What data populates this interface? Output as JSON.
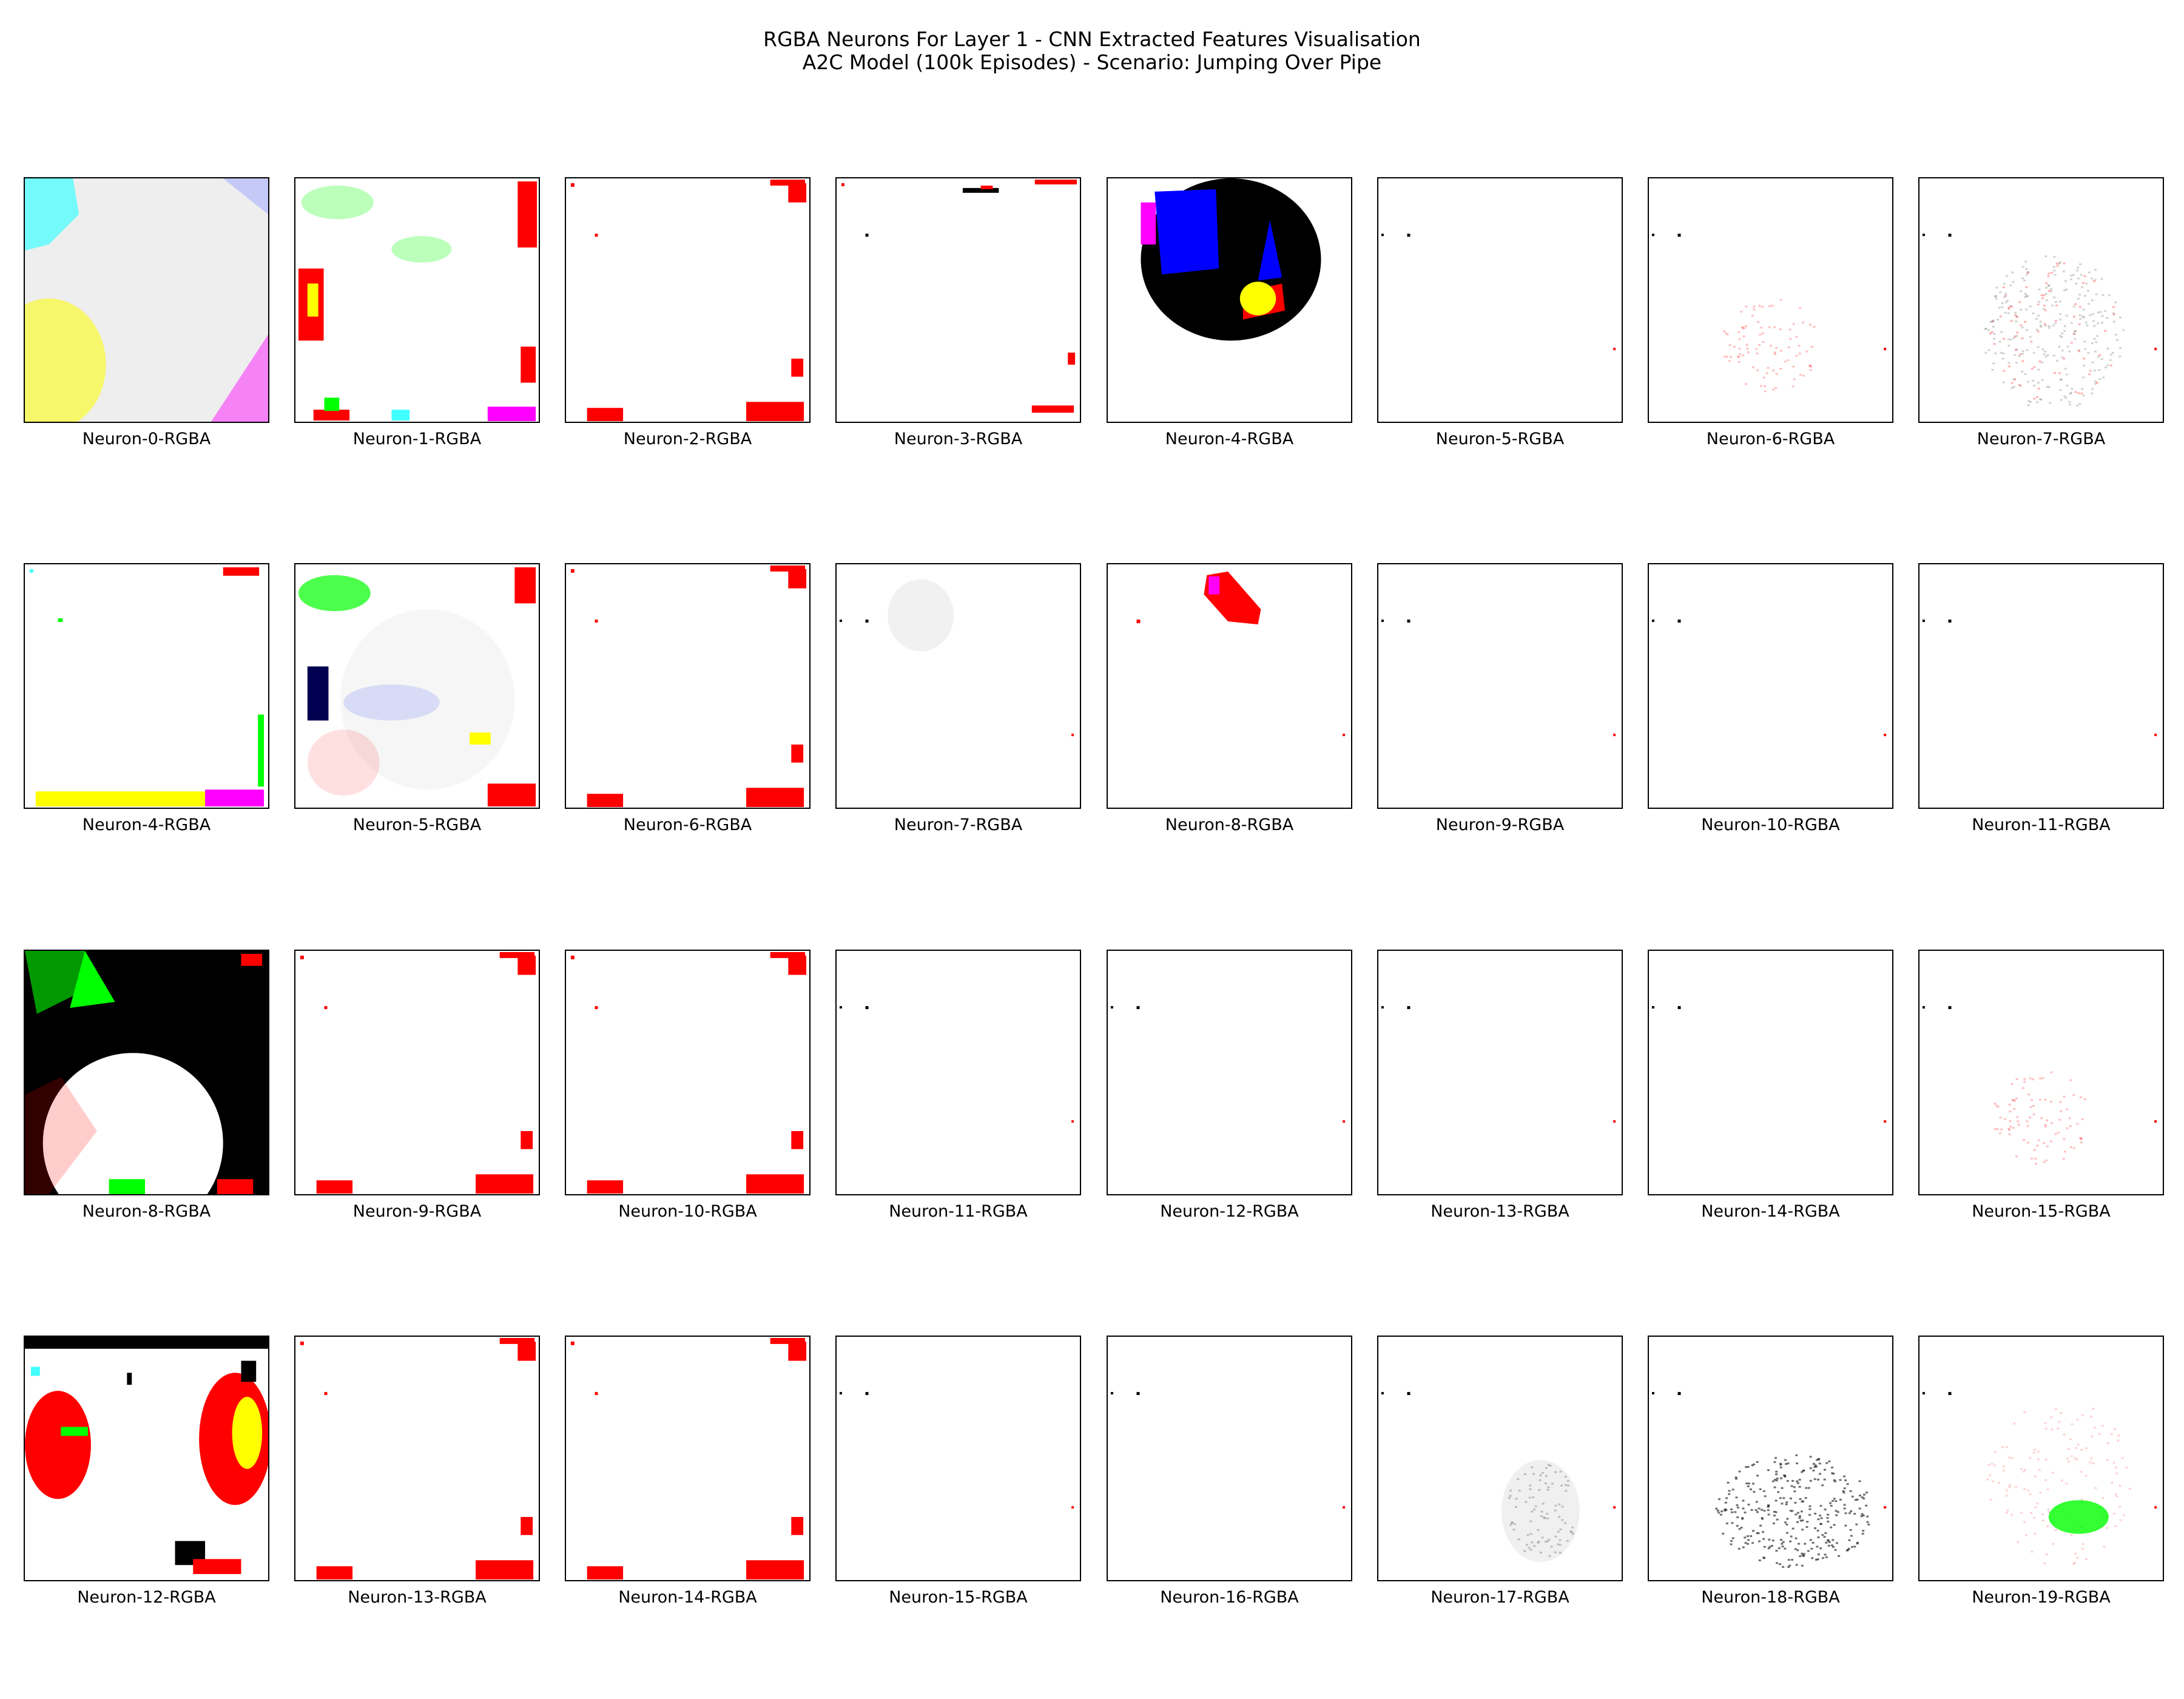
{
  "figure": {
    "title_line1": "RGBA Neurons For Layer 1 - CNN Extracted Features Visualisation",
    "title_line2": "A2C Model (100k Episodes) - Scenario: Jumping Over Pipe"
  },
  "chart_data": {
    "type": "heatmap",
    "layout": {
      "rows": 4,
      "cols": 8
    },
    "axes_ticks": false,
    "colors": {
      "red": "#ff0000",
      "green": "#00ff00",
      "blue": "#0000ff",
      "black": "#000000",
      "yellow": "#ffff00",
      "magenta": "#ff00ff",
      "cyan": "#40ffff",
      "navy": "#000050",
      "light_grey": "#eeeeee",
      "pale_green": "#aaffaa",
      "pale_blue": "#aab0ff",
      "dark_grey": "#202020"
    },
    "panels": [
      {
        "label": "Neuron-0-RGBA",
        "pattern": "bright-background"
      },
      {
        "label": "Neuron-1-RGBA",
        "pattern": "red-edges-green-patches"
      },
      {
        "label": "Neuron-2-RGBA",
        "pattern": "red-corners"
      },
      {
        "label": "Neuron-3-RGBA",
        "pattern": "sparse-red"
      },
      {
        "label": "Neuron-4-RGBA",
        "pattern": "black-blue-blob"
      },
      {
        "label": "Neuron-5-RGBA",
        "pattern": "sparse-dots"
      },
      {
        "label": "Neuron-6-RGBA",
        "pattern": "faint-speckle"
      },
      {
        "label": "Neuron-7-RGBA",
        "pattern": "grey-speckle"
      },
      {
        "label": "Neuron-4-RGBA",
        "pattern": "colour-border-bottom"
      },
      {
        "label": "Neuron-5-RGBA",
        "pattern": "navy-patch-faint-shapes"
      },
      {
        "label": "Neuron-6-RGBA",
        "pattern": "red-corners"
      },
      {
        "label": "Neuron-7-RGBA",
        "pattern": "faint-blob-top"
      },
      {
        "label": "Neuron-8-RGBA",
        "pattern": "red-blob-top"
      },
      {
        "label": "Neuron-9-RGBA",
        "pattern": "sparse-dots"
      },
      {
        "label": "Neuron-10-RGBA",
        "pattern": "sparse-dots"
      },
      {
        "label": "Neuron-11-RGBA",
        "pattern": "sparse-dots"
      },
      {
        "label": "Neuron-8-RGBA",
        "pattern": "black-white-green"
      },
      {
        "label": "Neuron-9-RGBA",
        "pattern": "red-corners"
      },
      {
        "label": "Neuron-10-RGBA",
        "pattern": "red-corners"
      },
      {
        "label": "Neuron-11-RGBA",
        "pattern": "sparse-dots"
      },
      {
        "label": "Neuron-12-RGBA",
        "pattern": "sparse-dots"
      },
      {
        "label": "Neuron-13-RGBA",
        "pattern": "sparse-dots"
      },
      {
        "label": "Neuron-14-RGBA",
        "pattern": "sparse-dots"
      },
      {
        "label": "Neuron-15-RGBA",
        "pattern": "faint-speckle"
      },
      {
        "label": "Neuron-12-RGBA",
        "pattern": "red-yellow-white-black"
      },
      {
        "label": "Neuron-13-RGBA",
        "pattern": "red-corners"
      },
      {
        "label": "Neuron-14-RGBA",
        "pattern": "red-corners"
      },
      {
        "label": "Neuron-15-RGBA",
        "pattern": "sparse-dots"
      },
      {
        "label": "Neuron-16-RGBA",
        "pattern": "sparse-dots"
      },
      {
        "label": "Neuron-17-RGBA",
        "pattern": "grey-blob"
      },
      {
        "label": "Neuron-18-RGBA",
        "pattern": "dark-grey-blob"
      },
      {
        "label": "Neuron-19-RGBA",
        "pattern": "green-blob"
      }
    ]
  }
}
